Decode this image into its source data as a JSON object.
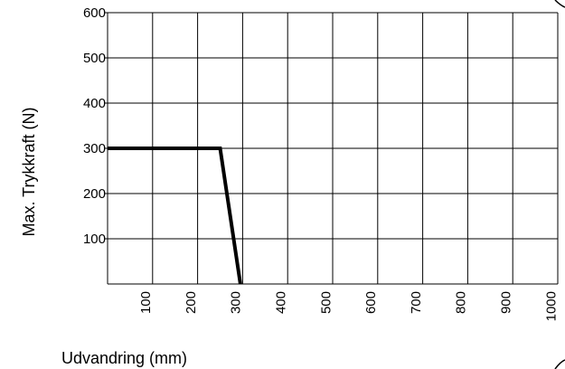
{
  "chart_data": {
    "type": "line",
    "xlabel": "Udvandring (mm)",
    "ylabel": "Max. Trykkraft (N)",
    "xlim": [
      0,
      1000
    ],
    "ylim": [
      0,
      600
    ],
    "x_ticks": [
      "100",
      "200",
      "300",
      "400",
      "500",
      "600",
      "700",
      "800",
      "900",
      "1000"
    ],
    "y_ticks": [
      "100",
      "200",
      "300",
      "400",
      "500",
      "600"
    ],
    "grid": true,
    "series": [
      {
        "x": [
          0,
          250,
          295
        ],
        "y": [
          300,
          300,
          0
        ]
      }
    ],
    "colors": {
      "line": "#000000",
      "grid": "#000000"
    }
  }
}
